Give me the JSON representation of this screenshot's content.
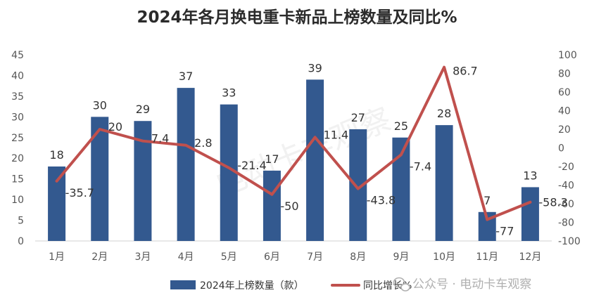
{
  "chart_data": {
    "type": "bar",
    "title": "2024年各月换电重卡新品上榜数量及同比%",
    "categories": [
      "1月",
      "2月",
      "3月",
      "4月",
      "5月",
      "6月",
      "7月",
      "8月",
      "9月",
      "10月",
      "11月",
      "12月"
    ],
    "series": [
      {
        "name": "2024年上榜数量（款）",
        "type": "bar",
        "axis": "left",
        "color": "#33598f",
        "values": [
          18,
          30,
          29,
          37,
          33,
          17,
          39,
          27,
          25,
          28,
          7,
          13
        ],
        "labels": [
          "18",
          "30",
          "29",
          "37",
          "33",
          "17",
          "39",
          "27",
          "25",
          "28",
          "7",
          "13"
        ]
      },
      {
        "name": "同比增长%",
        "type": "line",
        "axis": "right",
        "color": "#c0504d",
        "values": [
          -35.7,
          20,
          7.4,
          2.8,
          -21.4,
          -50,
          11.4,
          -43.8,
          -7.4,
          86.7,
          -77,
          -58.3
        ],
        "labels": [
          "-35.7",
          "20",
          "7.4",
          "2.8",
          "-21.4",
          "-50",
          "11.4",
          "-43.8",
          "-7.4",
          "86.7",
          "-77",
          "-58.3"
        ]
      }
    ],
    "y_left": {
      "range": [
        0,
        45
      ],
      "ticks": [
        "0",
        "5",
        "10",
        "15",
        "20",
        "25",
        "30",
        "35",
        "40",
        "45"
      ]
    },
    "y_right": {
      "range": [
        -100,
        100
      ],
      "ticks": [
        "-100",
        "-80",
        "-60",
        "-40",
        "-20",
        "0",
        "20",
        "40",
        "60",
        "80",
        "100"
      ]
    },
    "grid": false,
    "legend": "bottom"
  },
  "watermark": {
    "center_text": "电动卡车观察",
    "bottom_text": "公众号 · 电动卡车观察",
    "icon": "wechat-icon"
  }
}
